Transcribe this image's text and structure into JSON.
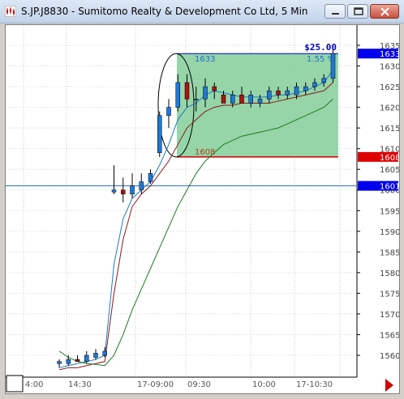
{
  "window": {
    "title": "S.JP.J8830 - Sumitomo Realty & Development Co Ltd, 5 Min",
    "buttons": [
      "minimize",
      "maximize",
      "close"
    ],
    "icons": [
      "app-chart-icon",
      "minimize-icon",
      "maximize-icon",
      "close-icon"
    ]
  },
  "chart_data": {
    "type": "candlestick",
    "title": "S.JP.J8830 - Sumitomo Realty & Development Co Ltd, 5 Min",
    "y_ticks": [
      1635,
      1630,
      1625,
      1620,
      1615,
      1610,
      1605,
      1600,
      1595,
      1590,
      1585,
      1580,
      1575,
      1570,
      1565,
      1560
    ],
    "ylim": [
      1556,
      1636
    ],
    "x_ticks": [
      "4:00",
      "14:30",
      "17-09:00",
      "09:30",
      "10:00",
      "17-10:30"
    ],
    "price_flags": [
      {
        "label": "1633",
        "color": "#0000ee"
      },
      {
        "label": "1608",
        "color": "#dd0000"
      },
      {
        "label": "1601",
        "color": "#0000ee"
      }
    ],
    "horizontal_line": {
      "value": 1601,
      "color": "#1f6fd0"
    },
    "box": {
      "top": 1633,
      "bottom": 1608,
      "top_label": "1633",
      "bottom_label": "1608",
      "profit_label": "$25.00",
      "percent_label": "1.55 %",
      "fill": "#8fd3a3"
    },
    "candles": [
      {
        "o": 1558,
        "h": 1559,
        "l": 1557,
        "c": 1558.5
      },
      {
        "o": 1558,
        "h": 1560,
        "l": 1557.5,
        "c": 1559
      },
      {
        "o": 1559,
        "h": 1560,
        "l": 1558.5,
        "c": 1558.5
      },
      {
        "o": 1558.5,
        "h": 1561,
        "l": 1558,
        "c": 1560
      },
      {
        "o": 1559.5,
        "h": 1561.5,
        "l": 1559,
        "c": 1560.5
      },
      {
        "o": 1560,
        "h": 1562,
        "l": 1559.5,
        "c": 1561
      },
      {
        "o": 1599.5,
        "h": 1606,
        "l": 1599,
        "c": 1600
      },
      {
        "o": 1600,
        "h": 1603,
        "l": 1597,
        "c": 1599
      },
      {
        "o": 1599,
        "h": 1604,
        "l": 1598,
        "c": 1601
      },
      {
        "o": 1600,
        "h": 1604,
        "l": 1599,
        "c": 1602
      },
      {
        "o": 1602,
        "h": 1605,
        "l": 1601.5,
        "c": 1604
      },
      {
        "o": 1609,
        "h": 1619,
        "l": 1608,
        "c": 1618
      },
      {
        "o": 1618,
        "h": 1622,
        "l": 1615,
        "c": 1620
      },
      {
        "o": 1620,
        "h": 1628,
        "l": 1619,
        "c": 1626
      },
      {
        "o": 1626,
        "h": 1628,
        "l": 1620,
        "c": 1622
      },
      {
        "o": 1622,
        "h": 1625,
        "l": 1619,
        "c": 1622
      },
      {
        "o": 1622,
        "h": 1627,
        "l": 1620,
        "c": 1625
      },
      {
        "o": 1625,
        "h": 1626,
        "l": 1622,
        "c": 1624
      },
      {
        "o": 1623,
        "h": 1624,
        "l": 1621,
        "c": 1621
      },
      {
        "o": 1621,
        "h": 1624,
        "l": 1620,
        "c": 1623
      },
      {
        "o": 1623,
        "h": 1625,
        "l": 1621,
        "c": 1621
      },
      {
        "o": 1621,
        "h": 1624,
        "l": 1620,
        "c": 1623
      },
      {
        "o": 1621,
        "h": 1623,
        "l": 1620,
        "c": 1622
      },
      {
        "o": 1622,
        "h": 1625,
        "l": 1621,
        "c": 1624
      },
      {
        "o": 1624,
        "h": 1625,
        "l": 1622,
        "c": 1623
      },
      {
        "o": 1623,
        "h": 1625,
        "l": 1622,
        "c": 1624
      },
      {
        "o": 1623,
        "h": 1626,
        "l": 1622,
        "c": 1625
      },
      {
        "o": 1624,
        "h": 1626,
        "l": 1623,
        "c": 1625
      },
      {
        "o": 1625,
        "h": 1627,
        "l": 1624,
        "c": 1626
      },
      {
        "o": 1626,
        "h": 1628,
        "l": 1625,
        "c": 1627
      },
      {
        "o": 1627,
        "h": 1634,
        "l": 1626,
        "c": 1633
      }
    ],
    "series": [
      {
        "color": "#1e78c8",
        "values": [
          1557,
          1557.5,
          1558,
          1558.5,
          1559,
          1560,
          1582,
          1593,
          1598,
          1600,
          1602,
          1606,
          1611,
          1617,
          1620,
          1621,
          1623,
          1624,
          1623.5,
          1623,
          1622.5,
          1622.5,
          1622.5,
          1622.5,
          1623,
          1623,
          1623.5,
          1624,
          1625,
          1626,
          1629
        ]
      },
      {
        "color": "#8b1a1a",
        "values": [
          1556.5,
          1557,
          1557,
          1557.5,
          1558,
          1558.5,
          1575,
          1588,
          1596,
          1599,
          1601,
          1604,
          1607,
          1611,
          1615,
          1617,
          1619,
          1620,
          1620.5,
          1620.5,
          1621,
          1621,
          1621,
          1621,
          1621.5,
          1622,
          1622.5,
          1623,
          1623.5,
          1624,
          1626
        ]
      },
      {
        "color": "#1e7a1e",
        "values": [
          1561,
          1559.5,
          1558.5,
          1558,
          1557.8,
          1557.5,
          1560,
          1565,
          1571,
          1576,
          1581,
          1586,
          1591,
          1596,
          1600,
          1604,
          1607,
          1609,
          1611,
          1612,
          1613,
          1613.5,
          1614,
          1614.5,
          1615,
          1616,
          1617,
          1618,
          1619,
          1620,
          1622
        ]
      }
    ],
    "grid": true
  }
}
